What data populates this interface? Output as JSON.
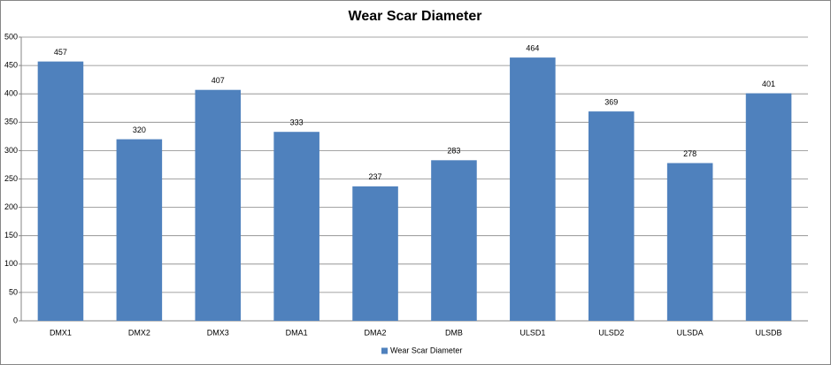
{
  "chart_data": {
    "type": "bar",
    "title": "Wear Scar Diameter",
    "categories": [
      "DMX1",
      "DMX2",
      "DMX3",
      "DMA1",
      "DMA2",
      "DMB",
      "ULSD1",
      "ULSD2",
      "ULSDA",
      "ULSDB"
    ],
    "series": [
      {
        "name": "Wear Scar Diameter",
        "color": "#4f81bd",
        "values": [
          457,
          320,
          407,
          333,
          237,
          283,
          464,
          369,
          278,
          401
        ]
      }
    ],
    "ylim": [
      0,
      500
    ],
    "yticks": [
      0,
      50,
      100,
      150,
      200,
      250,
      300,
      350,
      400,
      450,
      500
    ],
    "grid": true,
    "legend": "bottom",
    "data_labels": true
  }
}
